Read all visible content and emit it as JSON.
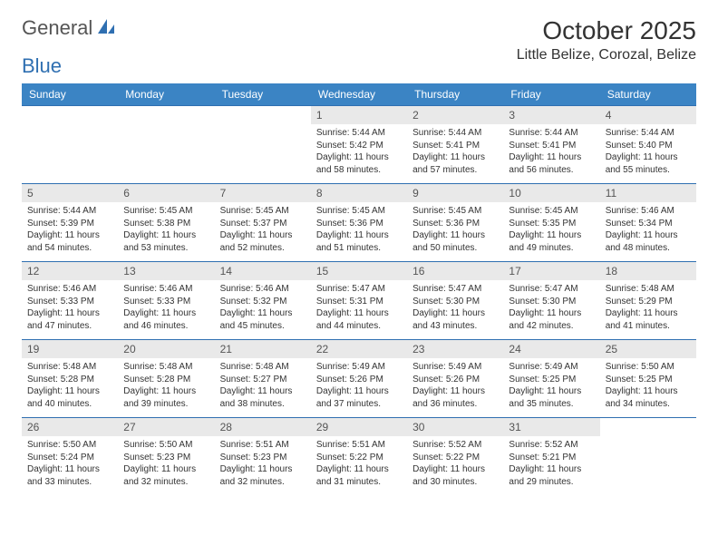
{
  "logo": {
    "text1": "General",
    "text2": "Blue"
  },
  "title": "October 2025",
  "location": "Little Belize, Corozal, Belize",
  "colors": {
    "header_bg": "#3b84c4",
    "header_text": "#ffffff",
    "cell_border": "#2f6fb1",
    "daynum_bg": "#e9e9e9",
    "logo_blue": "#2f6fb1"
  },
  "typography": {
    "title_fontsize": 28,
    "location_fontsize": 16,
    "header_fontsize": 12,
    "daynum_fontsize": 12,
    "body_fontsize": 10
  },
  "day_headers": [
    "Sunday",
    "Monday",
    "Tuesday",
    "Wednesday",
    "Thursday",
    "Friday",
    "Saturday"
  ],
  "weeks": [
    [
      {
        "n": "",
        "sr": "",
        "ss": "",
        "dl": ""
      },
      {
        "n": "",
        "sr": "",
        "ss": "",
        "dl": ""
      },
      {
        "n": "",
        "sr": "",
        "ss": "",
        "dl": ""
      },
      {
        "n": "1",
        "sr": "Sunrise: 5:44 AM",
        "ss": "Sunset: 5:42 PM",
        "dl": "Daylight: 11 hours and 58 minutes."
      },
      {
        "n": "2",
        "sr": "Sunrise: 5:44 AM",
        "ss": "Sunset: 5:41 PM",
        "dl": "Daylight: 11 hours and 57 minutes."
      },
      {
        "n": "3",
        "sr": "Sunrise: 5:44 AM",
        "ss": "Sunset: 5:41 PM",
        "dl": "Daylight: 11 hours and 56 minutes."
      },
      {
        "n": "4",
        "sr": "Sunrise: 5:44 AM",
        "ss": "Sunset: 5:40 PM",
        "dl": "Daylight: 11 hours and 55 minutes."
      }
    ],
    [
      {
        "n": "5",
        "sr": "Sunrise: 5:44 AM",
        "ss": "Sunset: 5:39 PM",
        "dl": "Daylight: 11 hours and 54 minutes."
      },
      {
        "n": "6",
        "sr": "Sunrise: 5:45 AM",
        "ss": "Sunset: 5:38 PM",
        "dl": "Daylight: 11 hours and 53 minutes."
      },
      {
        "n": "7",
        "sr": "Sunrise: 5:45 AM",
        "ss": "Sunset: 5:37 PM",
        "dl": "Daylight: 11 hours and 52 minutes."
      },
      {
        "n": "8",
        "sr": "Sunrise: 5:45 AM",
        "ss": "Sunset: 5:36 PM",
        "dl": "Daylight: 11 hours and 51 minutes."
      },
      {
        "n": "9",
        "sr": "Sunrise: 5:45 AM",
        "ss": "Sunset: 5:36 PM",
        "dl": "Daylight: 11 hours and 50 minutes."
      },
      {
        "n": "10",
        "sr": "Sunrise: 5:45 AM",
        "ss": "Sunset: 5:35 PM",
        "dl": "Daylight: 11 hours and 49 minutes."
      },
      {
        "n": "11",
        "sr": "Sunrise: 5:46 AM",
        "ss": "Sunset: 5:34 PM",
        "dl": "Daylight: 11 hours and 48 minutes."
      }
    ],
    [
      {
        "n": "12",
        "sr": "Sunrise: 5:46 AM",
        "ss": "Sunset: 5:33 PM",
        "dl": "Daylight: 11 hours and 47 minutes."
      },
      {
        "n": "13",
        "sr": "Sunrise: 5:46 AM",
        "ss": "Sunset: 5:33 PM",
        "dl": "Daylight: 11 hours and 46 minutes."
      },
      {
        "n": "14",
        "sr": "Sunrise: 5:46 AM",
        "ss": "Sunset: 5:32 PM",
        "dl": "Daylight: 11 hours and 45 minutes."
      },
      {
        "n": "15",
        "sr": "Sunrise: 5:47 AM",
        "ss": "Sunset: 5:31 PM",
        "dl": "Daylight: 11 hours and 44 minutes."
      },
      {
        "n": "16",
        "sr": "Sunrise: 5:47 AM",
        "ss": "Sunset: 5:30 PM",
        "dl": "Daylight: 11 hours and 43 minutes."
      },
      {
        "n": "17",
        "sr": "Sunrise: 5:47 AM",
        "ss": "Sunset: 5:30 PM",
        "dl": "Daylight: 11 hours and 42 minutes."
      },
      {
        "n": "18",
        "sr": "Sunrise: 5:48 AM",
        "ss": "Sunset: 5:29 PM",
        "dl": "Daylight: 11 hours and 41 minutes."
      }
    ],
    [
      {
        "n": "19",
        "sr": "Sunrise: 5:48 AM",
        "ss": "Sunset: 5:28 PM",
        "dl": "Daylight: 11 hours and 40 minutes."
      },
      {
        "n": "20",
        "sr": "Sunrise: 5:48 AM",
        "ss": "Sunset: 5:28 PM",
        "dl": "Daylight: 11 hours and 39 minutes."
      },
      {
        "n": "21",
        "sr": "Sunrise: 5:48 AM",
        "ss": "Sunset: 5:27 PM",
        "dl": "Daylight: 11 hours and 38 minutes."
      },
      {
        "n": "22",
        "sr": "Sunrise: 5:49 AM",
        "ss": "Sunset: 5:26 PM",
        "dl": "Daylight: 11 hours and 37 minutes."
      },
      {
        "n": "23",
        "sr": "Sunrise: 5:49 AM",
        "ss": "Sunset: 5:26 PM",
        "dl": "Daylight: 11 hours and 36 minutes."
      },
      {
        "n": "24",
        "sr": "Sunrise: 5:49 AM",
        "ss": "Sunset: 5:25 PM",
        "dl": "Daylight: 11 hours and 35 minutes."
      },
      {
        "n": "25",
        "sr": "Sunrise: 5:50 AM",
        "ss": "Sunset: 5:25 PM",
        "dl": "Daylight: 11 hours and 34 minutes."
      }
    ],
    [
      {
        "n": "26",
        "sr": "Sunrise: 5:50 AM",
        "ss": "Sunset: 5:24 PM",
        "dl": "Daylight: 11 hours and 33 minutes."
      },
      {
        "n": "27",
        "sr": "Sunrise: 5:50 AM",
        "ss": "Sunset: 5:23 PM",
        "dl": "Daylight: 11 hours and 32 minutes."
      },
      {
        "n": "28",
        "sr": "Sunrise: 5:51 AM",
        "ss": "Sunset: 5:23 PM",
        "dl": "Daylight: 11 hours and 32 minutes."
      },
      {
        "n": "29",
        "sr": "Sunrise: 5:51 AM",
        "ss": "Sunset: 5:22 PM",
        "dl": "Daylight: 11 hours and 31 minutes."
      },
      {
        "n": "30",
        "sr": "Sunrise: 5:52 AM",
        "ss": "Sunset: 5:22 PM",
        "dl": "Daylight: 11 hours and 30 minutes."
      },
      {
        "n": "31",
        "sr": "Sunrise: 5:52 AM",
        "ss": "Sunset: 5:21 PM",
        "dl": "Daylight: 11 hours and 29 minutes."
      },
      {
        "n": "",
        "sr": "",
        "ss": "",
        "dl": ""
      }
    ]
  ]
}
